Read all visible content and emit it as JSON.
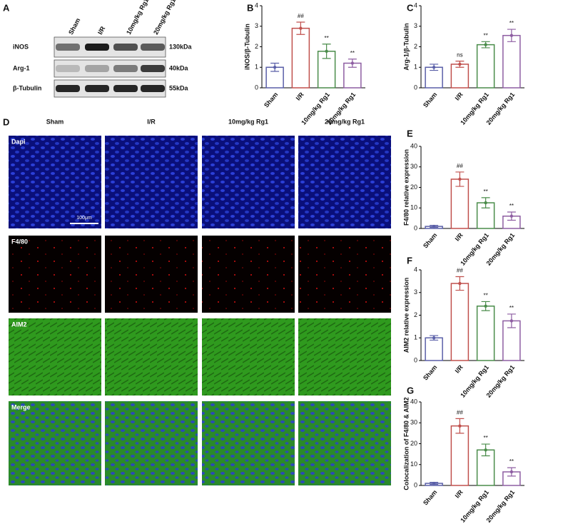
{
  "panel_labels": [
    "A",
    "B",
    "C",
    "D",
    "E",
    "F",
    "G"
  ],
  "blot": {
    "groups": [
      "Sham",
      "I/R",
      "10mg/kg Rg1",
      "20mg/kg Rg1"
    ],
    "rows": [
      {
        "protein": "iNOS",
        "size": "130kDa"
      },
      {
        "protein": "Arg-1",
        "size": "40kDa"
      },
      {
        "protein": "β-Tubulin",
        "size": "55kDa"
      }
    ]
  },
  "images": {
    "groups": [
      "Sham",
      "I/R",
      "10mg/kg Rg1",
      "20mg/kg Rg1"
    ],
    "channels": [
      "Dapi",
      "F4/80",
      "AIM2",
      "Merge"
    ],
    "scale_bar": "100μm"
  },
  "chart_data": [
    {
      "type": "bar",
      "ylabel": "iNOS/β-Tubulin",
      "categories": [
        "Sham",
        "I/R",
        "10mg/kg Rg1",
        "20mg/kg Rg1"
      ],
      "values": [
        1.0,
        2.9,
        1.78,
        1.2
      ],
      "errors": [
        0.2,
        0.3,
        0.35,
        0.2
      ],
      "annotations": [
        null,
        "##",
        "**",
        "**"
      ],
      "colors": [
        "#5a5fa8",
        "#c0504d",
        "#4a8c4a",
        "#8e5ea2"
      ],
      "ylim": [
        0,
        4
      ],
      "yticks": [
        0,
        1,
        2,
        3,
        4
      ]
    },
    {
      "type": "bar",
      "ylabel": "Arg-1/β-Tubulin",
      "categories": [
        "Sham",
        "I/R",
        "10mg/kg Rg1",
        "20mg/kg Rg1"
      ],
      "values": [
        1.0,
        1.15,
        2.1,
        2.55
      ],
      "errors": [
        0.15,
        0.15,
        0.15,
        0.3
      ],
      "annotations": [
        null,
        "ns",
        "**",
        "**"
      ],
      "colors": [
        "#5a5fa8",
        "#c0504d",
        "#4a8c4a",
        "#8e5ea2"
      ],
      "ylim": [
        0,
        4
      ],
      "yticks": [
        0,
        1,
        2,
        3,
        4
      ]
    },
    {
      "type": "bar",
      "ylabel": "F4/80 relative expression",
      "categories": [
        "Sham",
        "I/R",
        "10mg/kg Rg1",
        "20mg/kg Rg1"
      ],
      "values": [
        1,
        24,
        12.5,
        6
      ],
      "errors": [
        0.5,
        3.5,
        2.5,
        2
      ],
      "annotations": [
        null,
        "##",
        "**",
        "**"
      ],
      "colors": [
        "#5a5fa8",
        "#c0504d",
        "#4a8c4a",
        "#8e5ea2"
      ],
      "ylim": [
        0,
        40
      ],
      "yticks": [
        0,
        10,
        20,
        30,
        40
      ]
    },
    {
      "type": "bar",
      "ylabel": "AIM2 relative expression",
      "categories": [
        "Sham",
        "I/R",
        "10mg/kg Rg1",
        "20mg/kg Rg1"
      ],
      "values": [
        1.0,
        3.4,
        2.4,
        1.75
      ],
      "errors": [
        0.1,
        0.3,
        0.2,
        0.3
      ],
      "annotations": [
        null,
        "##",
        "**",
        "**"
      ],
      "colors": [
        "#5a5fa8",
        "#c0504d",
        "#4a8c4a",
        "#8e5ea2"
      ],
      "ylim": [
        0,
        4
      ],
      "yticks": [
        0,
        1,
        2,
        3,
        4
      ]
    },
    {
      "type": "bar",
      "ylabel": "Colocalization of F4/80 & AIM2",
      "categories": [
        "Sham",
        "I/R",
        "10mg/kg Rg1",
        "20mg/kg Rg1"
      ],
      "values": [
        1,
        28.5,
        17,
        6.5
      ],
      "errors": [
        0.5,
        3.5,
        2.8,
        2
      ],
      "annotations": [
        null,
        "##",
        "**",
        "**"
      ],
      "colors": [
        "#5a5fa8",
        "#c0504d",
        "#4a8c4a",
        "#8e5ea2"
      ],
      "ylim": [
        0,
        40
      ],
      "yticks": [
        0,
        10,
        20,
        30,
        40
      ]
    }
  ]
}
